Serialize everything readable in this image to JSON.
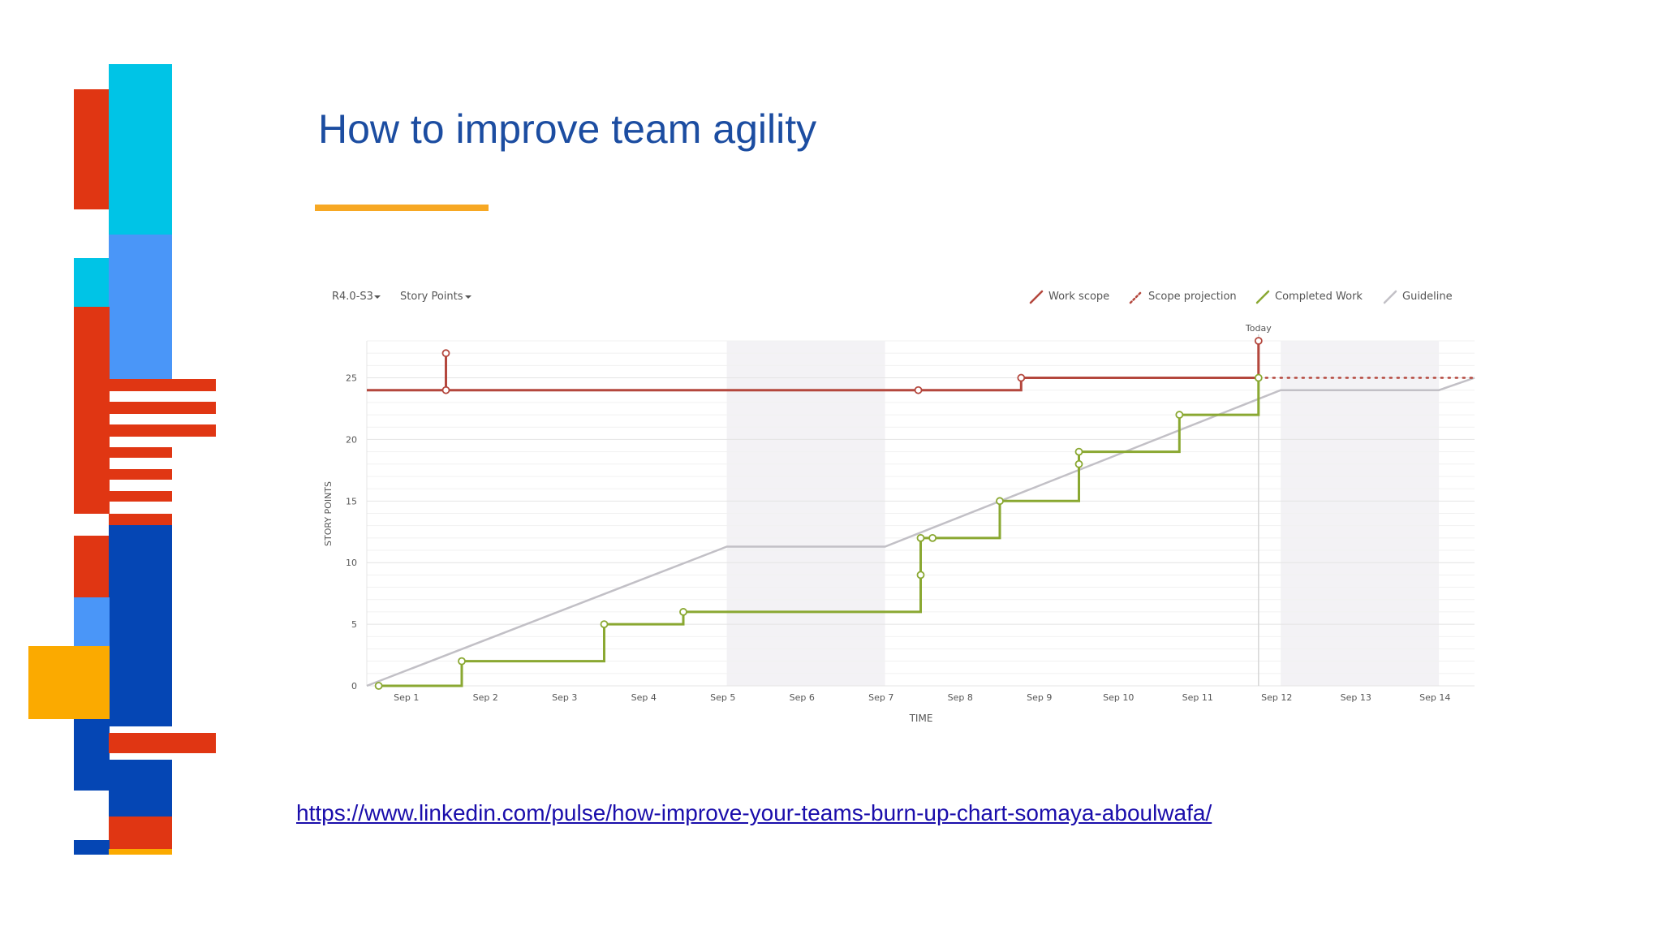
{
  "slide": {
    "title": "How to improve team agility",
    "link": "https://www.linkedin.com/pulse/how-improve-your-teams-burn-up-chart-somaya-aboulwafa/"
  },
  "colors": {
    "title": "#1c4da1",
    "accent_bar": "#f7a823",
    "work_scope": "#b4473d",
    "scope_projection": "#b4473d",
    "completed_work": "#8aa832",
    "guideline": "#c2c0c6",
    "nonworking_days": "#f3f2f5",
    "deco_red": "#e03613",
    "deco_cyan": "#00c4e6",
    "deco_lightblue": "#4a96f8",
    "deco_darkblue": "#0546b4",
    "deco_orange": "#fbaa00"
  },
  "chart_data": {
    "type": "line",
    "controls": {
      "sprint_dropdown": "R4.0-S3",
      "estimate_dropdown": "Story Points"
    },
    "xlabel": "TIME",
    "ylabel": "STORY POINTS",
    "categories": [
      "Sep 1",
      "Sep 2",
      "Sep 3",
      "Sep 4",
      "Sep 5",
      "Sep 6",
      "Sep 7",
      "Sep 8",
      "Sep 9",
      "Sep 10",
      "Sep 11",
      "Sep 12",
      "Sep 13",
      "Sep 14"
    ],
    "yticks": [
      0,
      5,
      10,
      15,
      20,
      25
    ],
    "ylim": [
      0,
      28
    ],
    "xlim": [
      0.5,
      14.5
    ],
    "nonworking_ranges": [
      [
        5.05,
        7.05
      ],
      [
        12.05,
        14.05
      ]
    ],
    "today_x": 11.77,
    "today_label": "Today",
    "legend_position": "top-right",
    "legend": [
      "Work scope",
      "Scope projection",
      "Completed Work",
      "Guideline"
    ],
    "series": [
      {
        "name": "Work scope",
        "style": "step",
        "points": [
          [
            0.5,
            24
          ],
          [
            1.5,
            24
          ],
          [
            1.5,
            27
          ],
          [
            1.5,
            24
          ],
          [
            7.47,
            24
          ],
          [
            8.77,
            24
          ],
          [
            8.77,
            25
          ],
          [
            11.77,
            25
          ],
          [
            11.77,
            28
          ],
          [
            11.77,
            25
          ]
        ],
        "markers": [
          [
            1.5,
            27
          ],
          [
            1.5,
            24
          ],
          [
            7.47,
            24
          ],
          [
            8.77,
            25
          ],
          [
            11.77,
            28
          ]
        ]
      },
      {
        "name": "Scope projection",
        "style": "dotted",
        "points": [
          [
            11.77,
            25
          ],
          [
            14.5,
            25
          ]
        ],
        "markers": []
      },
      {
        "name": "Completed Work",
        "style": "step",
        "points": [
          [
            0.65,
            0
          ],
          [
            1.7,
            0
          ],
          [
            1.7,
            2
          ],
          [
            3.5,
            2
          ],
          [
            3.5,
            5
          ],
          [
            4.5,
            5
          ],
          [
            4.5,
            6
          ],
          [
            7.5,
            6
          ],
          [
            7.5,
            9
          ],
          [
            7.5,
            12
          ],
          [
            8.5,
            12
          ],
          [
            8.5,
            15
          ],
          [
            9.5,
            15
          ],
          [
            9.5,
            18
          ],
          [
            9.5,
            19
          ],
          [
            10.77,
            19
          ],
          [
            10.77,
            22
          ],
          [
            11.77,
            22
          ],
          [
            11.77,
            25
          ]
        ],
        "markers": [
          [
            0.65,
            0
          ],
          [
            1.7,
            2
          ],
          [
            3.5,
            5
          ],
          [
            4.5,
            6
          ],
          [
            7.5,
            9
          ],
          [
            7.5,
            12
          ],
          [
            7.65,
            12
          ],
          [
            8.5,
            15
          ],
          [
            9.5,
            18
          ],
          [
            9.5,
            19
          ],
          [
            10.77,
            22
          ],
          [
            11.77,
            25
          ]
        ]
      },
      {
        "name": "Guideline",
        "style": "line",
        "points": [
          [
            0.5,
            0
          ],
          [
            5.05,
            11.3
          ],
          [
            7.05,
            11.3
          ],
          [
            12.05,
            24
          ],
          [
            14.05,
            24
          ],
          [
            14.5,
            25
          ]
        ],
        "markers": []
      }
    ]
  }
}
